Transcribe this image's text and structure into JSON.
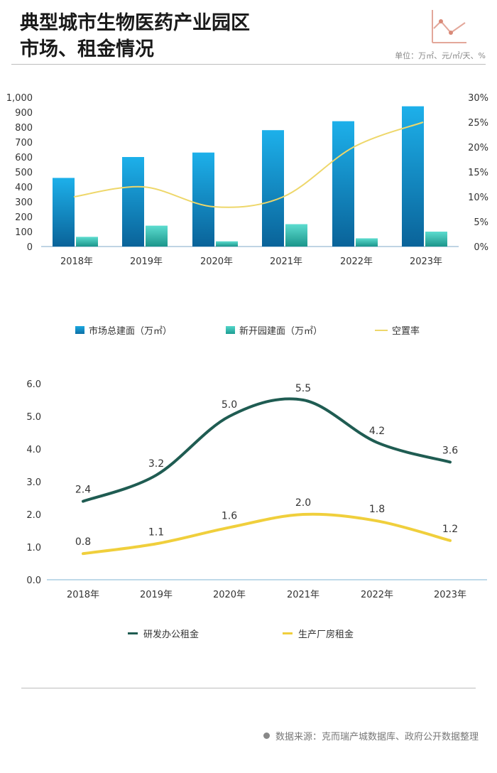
{
  "title_line1": "典型城市生物医药产业园区",
  "title_line2": "市场、租金情况",
  "unit_label": "单位：万㎡、元/㎡/天、%",
  "source_text": "数据来源：克而瑞产城数据库、政府公开数据整理",
  "colors": {
    "bar_total": "#1a9fd9",
    "bar_new": "#3fc9bd",
    "vacancy": "#eed76a",
    "rd_rent": "#1f5c52",
    "factory_rent": "#f0cf3c"
  },
  "chart_data": [
    {
      "type": "bar",
      "categories": [
        "2018年",
        "2019年",
        "2020年",
        "2021年",
        "2022年",
        "2023年"
      ],
      "series": [
        {
          "name": "市场总建面（万㎡）",
          "values": [
            460,
            600,
            630,
            780,
            840,
            940
          ]
        },
        {
          "name": "新开园建面（万㎡）",
          "values": [
            65,
            140,
            35,
            150,
            55,
            100
          ]
        }
      ],
      "line_series": {
        "name": "空置率",
        "values": [
          10,
          12,
          8,
          10,
          20,
          25
        ],
        "axis": "right"
      },
      "yticks_left": [
        "0",
        "100",
        "200",
        "300",
        "400",
        "500",
        "600",
        "700",
        "800",
        "900",
        "1,000"
      ],
      "yticks_right": [
        "0%",
        "5%",
        "10%",
        "15%",
        "20%",
        "25%",
        "30%"
      ],
      "ylim_left": [
        0,
        1000
      ],
      "ylim_right": [
        0,
        30
      ]
    },
    {
      "type": "line",
      "categories": [
        "2018年",
        "2019年",
        "2020年",
        "2021年",
        "2022年",
        "2023年"
      ],
      "series": [
        {
          "name": "研发办公租金",
          "values": [
            2.4,
            3.2,
            5.0,
            5.5,
            4.2,
            3.6
          ],
          "labels": [
            "2.4",
            "3.2",
            "5.0",
            "5.5",
            "4.2",
            "3.6"
          ]
        },
        {
          "name": "生产厂房租金",
          "values": [
            0.8,
            1.1,
            1.6,
            2.0,
            1.8,
            1.2
          ],
          "labels": [
            "0.8",
            "1.1",
            "1.6",
            "2.0",
            "1.8",
            "1.2"
          ]
        }
      ],
      "yticks": [
        "0.0",
        "1.0",
        "2.0",
        "3.0",
        "4.0",
        "5.0",
        "6.0"
      ],
      "ylim": [
        0,
        6
      ]
    }
  ]
}
